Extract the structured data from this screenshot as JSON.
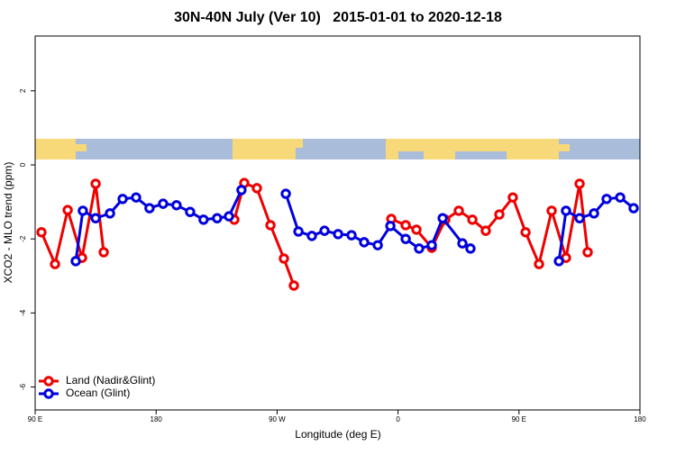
{
  "chart_data": {
    "type": "line",
    "title": "30N-40N July (Ver 10)   2015-01-01 to 2020-12-18",
    "x_label": "Longitude (deg E)",
    "y_label": "XCO2 - MLO trend (ppm)",
    "xlim": [
      90,
      540
    ],
    "ylim": [
      -6.62,
      3.48
    ],
    "xticks": [
      {
        "value": 90,
        "label": "90 E"
      },
      180,
      {
        "value": 270,
        "label": "90 W"
      },
      {
        "value": 360,
        "label": "0"
      },
      {
        "value": 450,
        "label": "90 E"
      },
      {
        "value": 540,
        "label": "180"
      }
    ],
    "yticks": [
      -6,
      -4,
      -2,
      0,
      2
    ],
    "legend": "bottom-left",
    "series": [
      {
        "name": "Land (Nadir&Glint)",
        "color": "#ee0000",
        "x": [
          94.7,
          104.8,
          114.2,
          124.9,
          135.0,
          141.0,
          null,
          238.2,
          245.6,
          255.0,
          265.1,
          275.1,
          282.5,
          null,
          355.0,
          365.7,
          373.7,
          385.1,
          395.2,
          405.2,
          415.3,
          425.3,
          435.4,
          445.4,
          454.9,
          464.9,
          474.3,
          485.0,
          495.1,
          501.1
        ],
        "values": [
          -1.82,
          -2.68,
          -1.22,
          -2.51,
          -0.51,
          -2.36,
          null,
          -1.48,
          -0.49,
          -0.63,
          -1.63,
          -2.53,
          -3.26,
          null,
          -1.46,
          -1.63,
          -1.75,
          -2.24,
          -1.48,
          -1.24,
          -1.48,
          -1.78,
          -1.34,
          -0.88,
          -1.82,
          -2.68,
          -1.24,
          -2.51,
          -0.51,
          -2.36
        ]
      },
      {
        "name": "Ocean (Glint)",
        "color": "#0000dd",
        "x": [
          120.2,
          125.5,
          135.0,
          145.7,
          155.1,
          165.1,
          175.1,
          185.2,
          195.2,
          205.3,
          215.3,
          225.4,
          234.2,
          243.5,
          null,
          276.5,
          285.9,
          295.9,
          305.3,
          315.4,
          325.4,
          334.8,
          344.9,
          354.3,
          365.7,
          375.7,
          385.1,
          393.2,
          407.9,
          413.9,
          null,
          479.7,
          485.0,
          495.1,
          505.8,
          515.2,
          525.3,
          535.3
        ],
        "values": [
          -2.6,
          -1.24,
          -1.44,
          -1.31,
          -0.92,
          -0.88,
          -1.17,
          -1.05,
          -1.09,
          -1.27,
          -1.48,
          -1.44,
          -1.39,
          -0.68,
          null,
          -0.78,
          -1.8,
          -1.92,
          -1.78,
          -1.87,
          -1.9,
          -2.09,
          -2.17,
          -1.65,
          -2.0,
          -2.26,
          -2.17,
          -1.44,
          -2.12,
          -2.26,
          null,
          -2.6,
          -1.24,
          -1.44,
          -1.31,
          -0.92,
          -0.88,
          -1.17
        ]
      }
    ]
  }
}
